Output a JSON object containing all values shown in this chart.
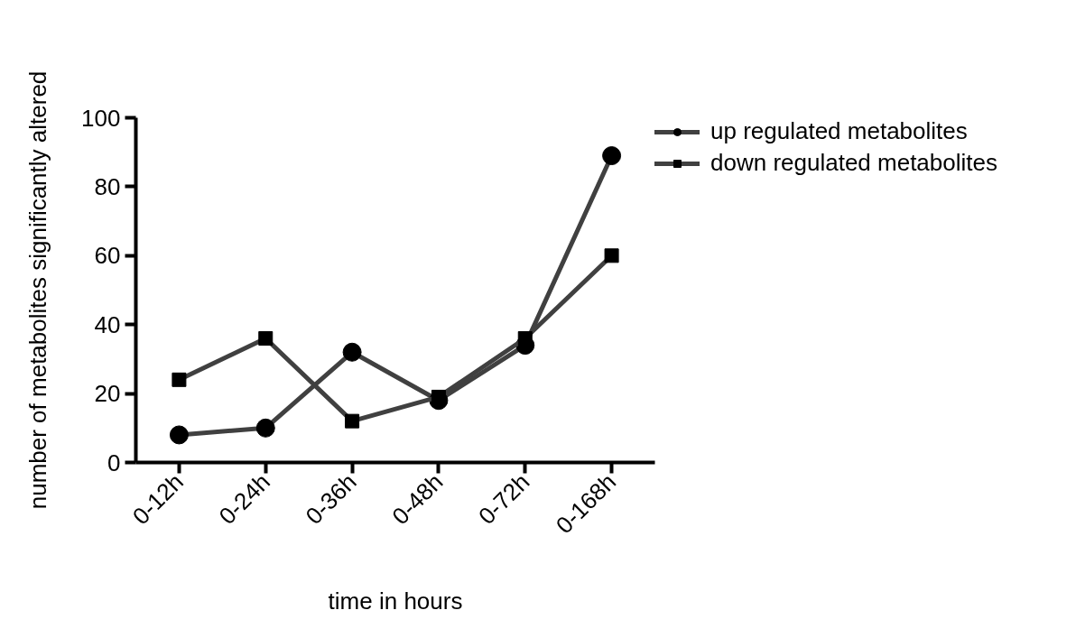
{
  "chart_data": {
    "type": "line",
    "categories": [
      "0-12h",
      "0-24h",
      "0-36h",
      "0-48h",
      "0-72h",
      "0-168h"
    ],
    "xlabel": "time in hours",
    "ylabel": "number of metabolites significantly altered",
    "ylim": [
      0,
      100
    ],
    "yticks": [
      0,
      20,
      40,
      60,
      80,
      100
    ],
    "series": [
      {
        "name": "up regulated metabolites",
        "color": "#404040",
        "marker": "circle",
        "values": [
          8,
          10,
          32,
          18,
          34,
          89
        ]
      },
      {
        "name": "down regulated metabolites",
        "color": "#404040",
        "marker": "square",
        "values": [
          24,
          36,
          12,
          19,
          36,
          60
        ]
      }
    ],
    "grid": false,
    "legend": "right",
    "line_style": "solid"
  }
}
